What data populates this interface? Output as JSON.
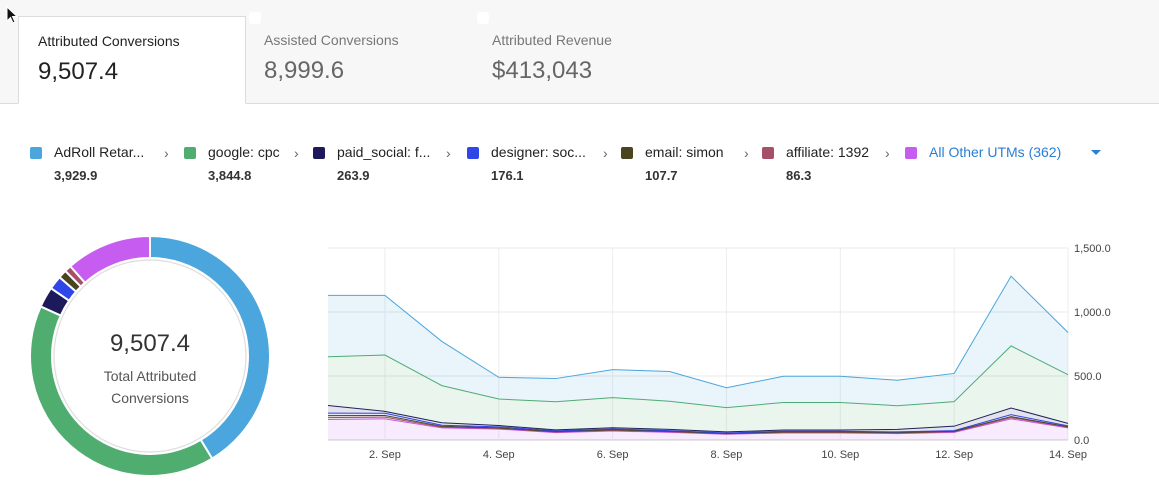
{
  "tabs": [
    {
      "label": "Attributed Conversions",
      "value": "9,507.4",
      "active": true
    },
    {
      "label": "Assisted Conversions",
      "value": "8,999.6",
      "active": false
    },
    {
      "label": "Attributed Revenue",
      "value": "$413,043",
      "active": false
    }
  ],
  "legend": [
    {
      "name": "AdRoll Retar...",
      "value": "3,929.9",
      "color": "#4aa6dc"
    },
    {
      "name": "google: cpc",
      "value": "3,844.8",
      "color": "#4fad6f"
    },
    {
      "name": "paid_social: f...",
      "value": "263.9",
      "color": "#1d1a5c"
    },
    {
      "name": "designer: soc...",
      "value": "176.1",
      "color": "#2f47e8"
    },
    {
      "name": "email: simon",
      "value": "107.7",
      "color": "#4a4421"
    },
    {
      "name": "affiliate: 1392",
      "value": "86.3",
      "color": "#a65068"
    },
    {
      "name": "All Other UTMs (362)",
      "value": "",
      "color": "#c65cf0"
    }
  ],
  "donut": {
    "total": "9,507.4",
    "label": "Total Attributed Conversions",
    "slices": [
      {
        "name": "AdRoll Retar...",
        "value": 3929.9,
        "color": "#4aa6dc"
      },
      {
        "name": "google: cpc",
        "value": 3844.8,
        "color": "#4fad6f"
      },
      {
        "name": "paid_social: f...",
        "value": 263.9,
        "color": "#1d1a5c"
      },
      {
        "name": "designer: soc...",
        "value": 176.1,
        "color": "#2f47e8"
      },
      {
        "name": "email: simon",
        "value": 107.7,
        "color": "#4a4421"
      },
      {
        "name": "affiliate: 1392",
        "value": 86.3,
        "color": "#a65068"
      },
      {
        "name": "All Other UTMs (362)",
        "value": 1098.7,
        "color": "#c65cf0"
      }
    ]
  },
  "chart_data": {
    "type": "area",
    "x": [
      1,
      2,
      3,
      4,
      5,
      6,
      7,
      8,
      9,
      10,
      11,
      12,
      13,
      14
    ],
    "x_tick_labels": [
      "2. Sep",
      "4. Sep",
      "6. Sep",
      "8. Sep",
      "10. Sep",
      "12. Sep",
      "14. Sep"
    ],
    "x_tick_values": [
      2,
      4,
      6,
      8,
      10,
      12,
      14
    ],
    "ylim": [
      0,
      1500
    ],
    "y_tick_labels": [
      "0.0",
      "500.0",
      "1,000.0",
      "1,500.0"
    ],
    "y_tick_values": [
      0,
      500,
      1000,
      1500
    ],
    "y_axis_position": "right",
    "grid": true,
    "stacked": true,
    "series": [
      {
        "name": "All Other UTMs (362)",
        "color": "#c65cf0",
        "values": [
          160,
          165,
          95,
          85,
          58,
          70,
          60,
          45,
          55,
          55,
          50,
          60,
          165,
          95
        ]
      },
      {
        "name": "affiliate: 1392",
        "color": "#a65068",
        "values": [
          15,
          14,
          6,
          5,
          4,
          5,
          4,
          3,
          4,
          4,
          4,
          4,
          10,
          5
        ]
      },
      {
        "name": "email: simon",
        "color": "#4a4421",
        "values": [
          15,
          12,
          6,
          5,
          4,
          5,
          4,
          3,
          4,
          4,
          4,
          4,
          8,
          4
        ]
      },
      {
        "name": "designer: soc...",
        "color": "#2f47e8",
        "values": [
          20,
          18,
          8,
          8,
          5,
          6,
          5,
          4,
          5,
          5,
          5,
          5,
          15,
          6
        ]
      },
      {
        "name": "paid_social: f...",
        "color": "#1d1a5c",
        "values": [
          60,
          15,
          20,
          10,
          8,
          10,
          10,
          8,
          10,
          10,
          20,
          35,
          52,
          20
        ]
      },
      {
        "name": "google: cpc",
        "color": "#4fad6f",
        "values": [
          380,
          440,
          290,
          207,
          220,
          235,
          220,
          190,
          215,
          215,
          185,
          192,
          485,
          380
        ]
      },
      {
        "name": "AdRoll Retar...",
        "color": "#4aa6dc",
        "values": [
          480,
          466,
          345,
          170,
          181,
          219,
          232,
          155,
          205,
          205,
          199,
          220,
          545,
          330
        ]
      }
    ]
  }
}
